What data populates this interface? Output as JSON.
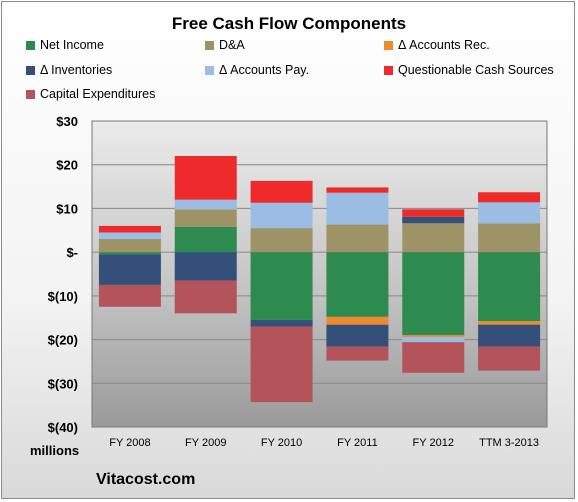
{
  "chart_data": {
    "type": "bar",
    "stacked": true,
    "title": "Free Cash Flow Components",
    "units_label": "millions",
    "source": "Vitacost.com",
    "categories": [
      "FY 2008",
      "FY 2009",
      "FY 2010",
      "FY 2011",
      "FY 2012",
      "TTM 3-2013"
    ],
    "ylim": [
      -40,
      30
    ],
    "yticks": [
      30,
      20,
      10,
      0,
      -10,
      -20,
      -30,
      -40
    ],
    "ytick_labels": [
      "$30",
      "$20",
      "$10",
      "$-",
      "$(10)",
      "$(20)",
      "$(30)",
      "$(40)"
    ],
    "grid": true,
    "legend": "top",
    "series": [
      {
        "name": "Net Income",
        "color": "#2e8b50",
        "values": [
          -0.5,
          5.8,
          -15.5,
          -14.8,
          -19.0,
          -15.8
        ]
      },
      {
        "name": "D&A",
        "color": "#9e9366",
        "values": [
          3.0,
          4.0,
          5.5,
          6.3,
          6.6,
          6.6
        ]
      },
      {
        "name": "Δ Accounts Rec.",
        "color": "#ee8a2c",
        "values": [
          0,
          0,
          0,
          -1.8,
          -0.4,
          -0.8
        ]
      },
      {
        "name": "Δ Inventories",
        "color": "#34507a",
        "values": [
          -7.0,
          -6.5,
          -1.5,
          -5.0,
          1.5,
          -5.0
        ]
      },
      {
        "name": "Δ Accounts Pay.",
        "color": "#9bbce3",
        "values": [
          1.5,
          2.2,
          5.8,
          7.3,
          -1.2,
          4.8
        ]
      },
      {
        "name": "Questionable Cash Sources",
        "color": "#ee2a2a",
        "values": [
          1.5,
          10.0,
          5.0,
          1.2,
          1.7,
          2.3
        ]
      },
      {
        "name": "Capital Expenditures",
        "color": "#b2545a",
        "values": [
          -5.0,
          -7.5,
          -17.3,
          -3.2,
          -7.0,
          -5.5
        ]
      }
    ]
  }
}
